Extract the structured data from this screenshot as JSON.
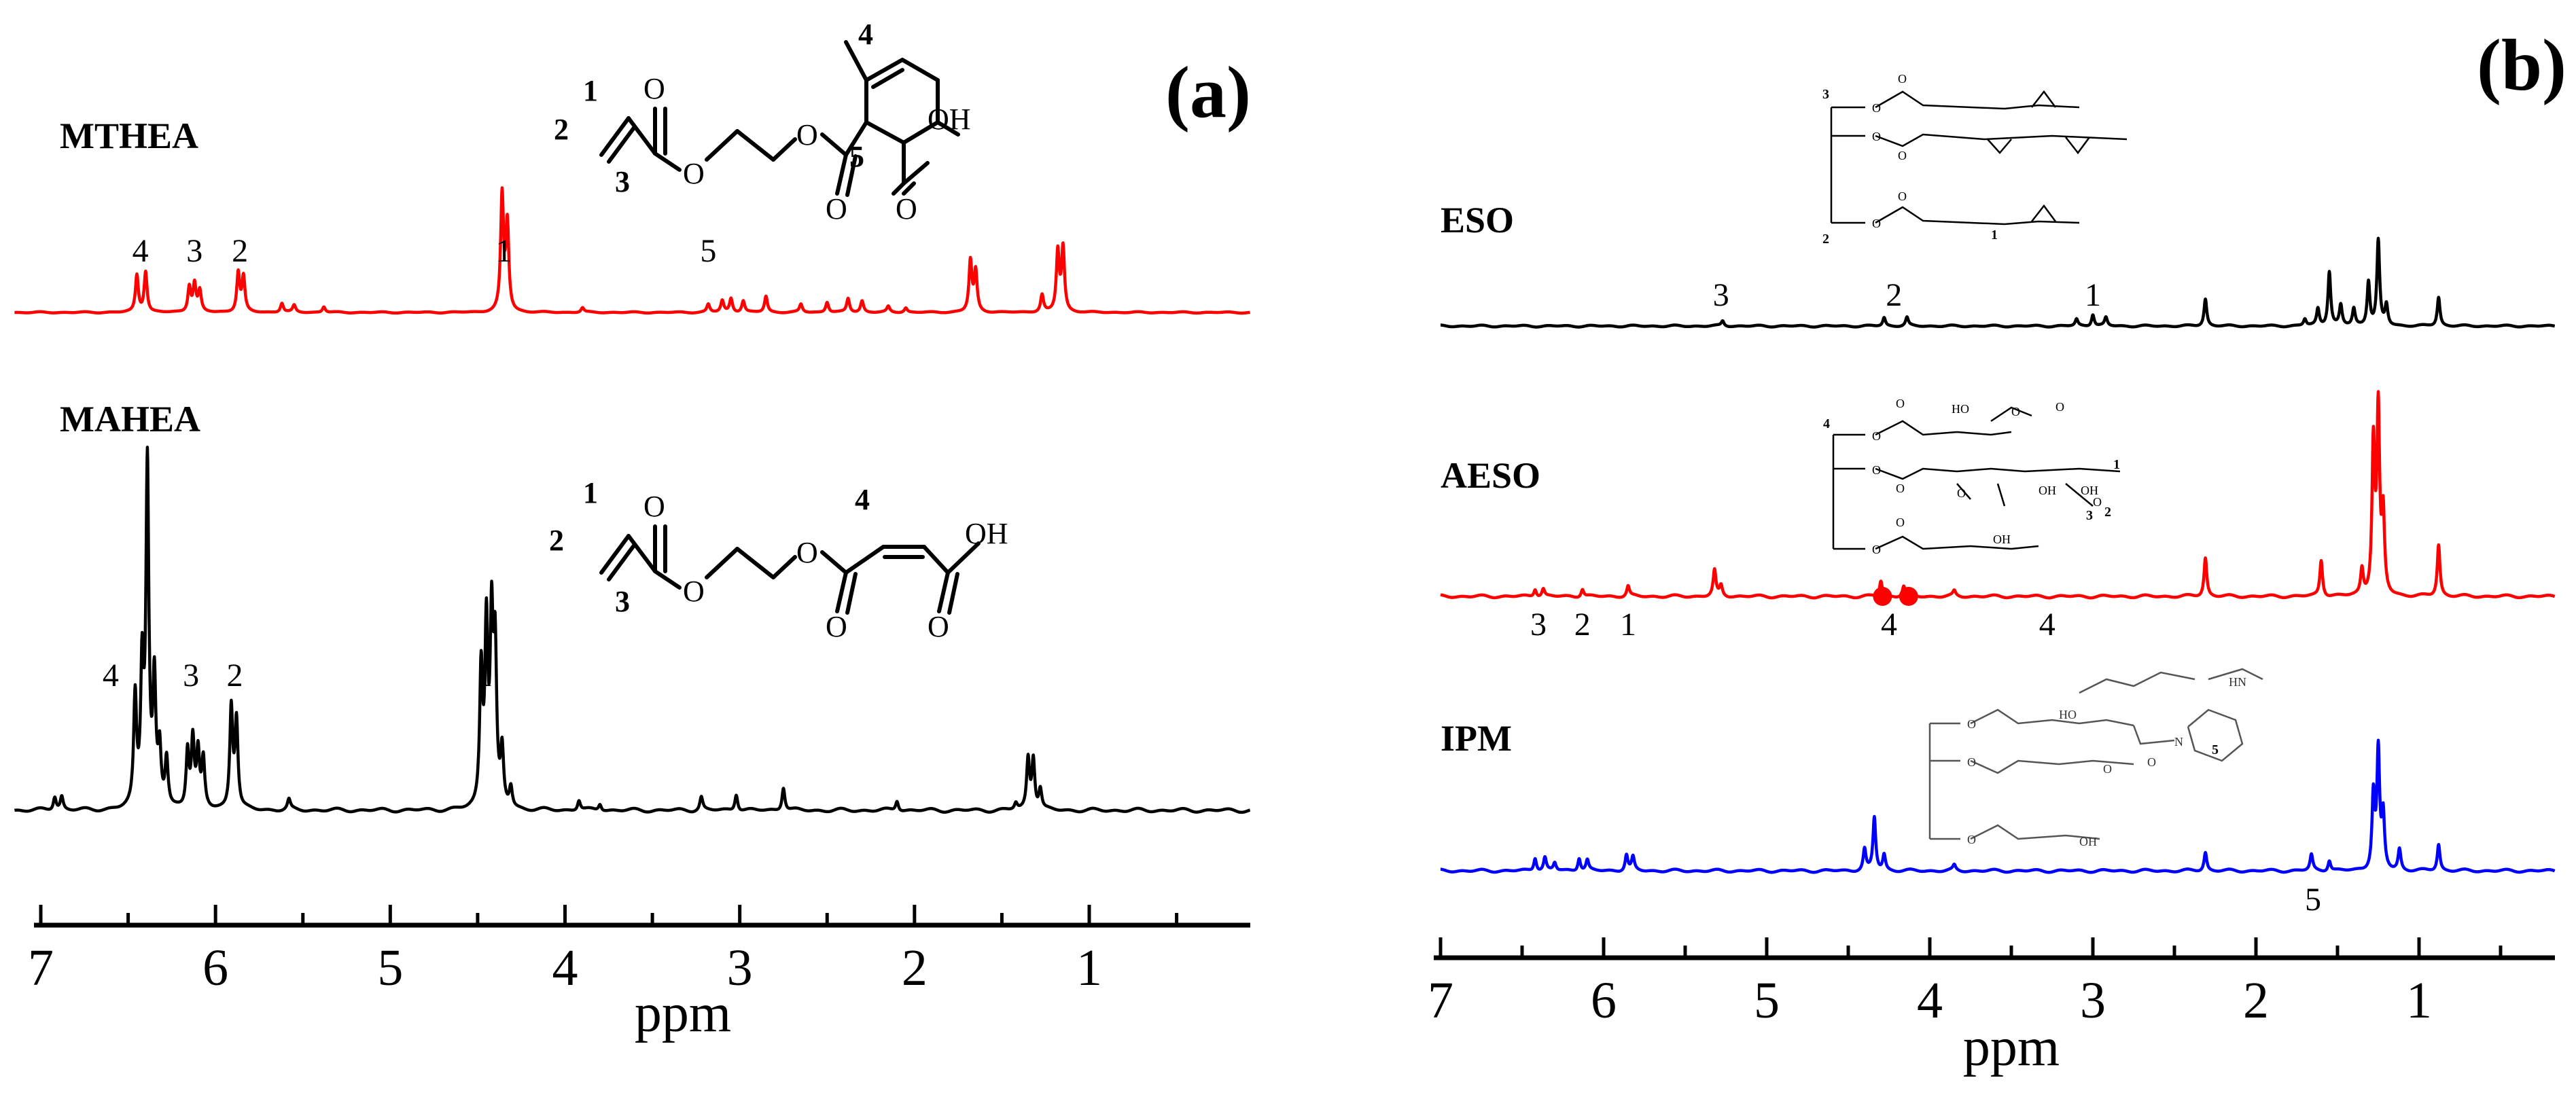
{
  "chart_data": [
    {
      "type": "line",
      "panel": "(a)",
      "xlabel": "ppm",
      "xlim": [
        7.15,
        0.0
      ],
      "x_ticks": [
        "7",
        "6",
        "5",
        "4",
        "3",
        "2",
        "1"
      ],
      "x_tick_values": [
        7,
        6,
        5,
        4,
        3,
        2,
        1
      ],
      "x_axis_reversed": true,
      "legend": "none",
      "series": [
        {
          "name": "MTHEA",
          "color": "#ff0000",
          "peaks": [
            {
              "ppm": 6.45,
              "h": 0.32
            },
            {
              "ppm": 6.4,
              "h": 0.35
            },
            {
              "ppm": 6.15,
              "h": 0.22
            },
            {
              "ppm": 6.12,
              "h": 0.24
            },
            {
              "ppm": 6.09,
              "h": 0.18
            },
            {
              "ppm": 5.87,
              "h": 0.34
            },
            {
              "ppm": 5.84,
              "h": 0.3
            },
            {
              "ppm": 5.62,
              "h": 0.08
            },
            {
              "ppm": 5.55,
              "h": 0.06
            },
            {
              "ppm": 5.38,
              "h": 0.05
            },
            {
              "ppm": 4.36,
              "h": 1.0
            },
            {
              "ppm": 4.33,
              "h": 0.75
            },
            {
              "ppm": 3.9,
              "h": 0.04
            },
            {
              "ppm": 3.18,
              "h": 0.07
            },
            {
              "ppm": 3.1,
              "h": 0.1
            },
            {
              "ppm": 3.05,
              "h": 0.12
            },
            {
              "ppm": 2.98,
              "h": 0.1
            },
            {
              "ppm": 2.85,
              "h": 0.14
            },
            {
              "ppm": 2.65,
              "h": 0.07
            },
            {
              "ppm": 2.5,
              "h": 0.09
            },
            {
              "ppm": 2.38,
              "h": 0.12
            },
            {
              "ppm": 2.3,
              "h": 0.1
            },
            {
              "ppm": 2.15,
              "h": 0.05
            },
            {
              "ppm": 2.05,
              "h": 0.04
            },
            {
              "ppm": 1.68,
              "h": 0.44
            },
            {
              "ppm": 1.65,
              "h": 0.35
            },
            {
              "ppm": 1.27,
              "h": 0.15
            },
            {
              "ppm": 1.18,
              "h": 0.52
            },
            {
              "ppm": 1.15,
              "h": 0.55
            }
          ],
          "peak_labels": [
            {
              "text": "4",
              "ppm": 6.43
            },
            {
              "text": "3",
              "ppm": 6.12
            },
            {
              "text": "2",
              "ppm": 5.86
            },
            {
              "text": "1",
              "ppm": 4.35
            },
            {
              "text": "5",
              "ppm": 3.18
            }
          ],
          "structure_labels": {
            "acid": "OH",
            "nums": [
              "1",
              "2",
              "3",
              "4",
              "5"
            ]
          }
        },
        {
          "name": "MAHEA",
          "color": "#000000",
          "peaks": [
            {
              "ppm": 6.92,
              "h": 0.04
            },
            {
              "ppm": 6.88,
              "h": 0.04
            },
            {
              "ppm": 6.46,
              "h": 0.32
            },
            {
              "ppm": 6.42,
              "h": 0.4
            },
            {
              "ppm": 6.39,
              "h": 1.0
            },
            {
              "ppm": 6.35,
              "h": 0.36
            },
            {
              "ppm": 6.32,
              "h": 0.16
            },
            {
              "ppm": 6.28,
              "h": 0.14
            },
            {
              "ppm": 6.16,
              "h": 0.17
            },
            {
              "ppm": 6.13,
              "h": 0.2
            },
            {
              "ppm": 6.1,
              "h": 0.16
            },
            {
              "ppm": 6.07,
              "h": 0.14
            },
            {
              "ppm": 5.91,
              "h": 0.3
            },
            {
              "ppm": 5.88,
              "h": 0.26
            },
            {
              "ppm": 5.58,
              "h": 0.03
            },
            {
              "ppm": 4.48,
              "h": 0.4
            },
            {
              "ppm": 4.45,
              "h": 0.52
            },
            {
              "ppm": 4.42,
              "h": 0.52
            },
            {
              "ppm": 4.4,
              "h": 0.44
            },
            {
              "ppm": 4.36,
              "h": 0.16
            },
            {
              "ppm": 4.31,
              "h": 0.06
            },
            {
              "ppm": 3.92,
              "h": 0.03
            },
            {
              "ppm": 3.8,
              "h": 0.02
            },
            {
              "ppm": 3.22,
              "h": 0.04
            },
            {
              "ppm": 3.02,
              "h": 0.05
            },
            {
              "ppm": 2.75,
              "h": 0.07
            },
            {
              "ppm": 2.1,
              "h": 0.03
            },
            {
              "ppm": 1.42,
              "h": 0.02
            },
            {
              "ppm": 1.35,
              "h": 0.15
            },
            {
              "ppm": 1.32,
              "h": 0.15
            },
            {
              "ppm": 1.28,
              "h": 0.06
            }
          ],
          "peak_labels": [
            {
              "text": "4",
              "ppm": 6.6
            },
            {
              "text": "3",
              "ppm": 6.14
            },
            {
              "text": "2",
              "ppm": 5.89
            },
            {
              "text": "1",
              "ppm": 4.46
            }
          ],
          "structure_labels": {
            "acid": "OH",
            "nums": [
              "1",
              "2",
              "3",
              "4"
            ]
          }
        }
      ]
    },
    {
      "type": "line",
      "panel": "(b)",
      "xlabel": "ppm",
      "xlim": [
        7.0,
        0.0
      ],
      "x_ticks": [
        "7",
        "6",
        "5",
        "4",
        "3",
        "2",
        "1"
      ],
      "x_tick_values": [
        7,
        6,
        5,
        4,
        3,
        2,
        1
      ],
      "x_axis_reversed": true,
      "legend": "none",
      "series": [
        {
          "name": "ESO",
          "color": "#000000",
          "peaks": [
            {
              "ppm": 5.27,
              "h": 0.03
            },
            {
              "ppm": 4.28,
              "h": 0.05
            },
            {
              "ppm": 4.14,
              "h": 0.05
            },
            {
              "ppm": 3.1,
              "h": 0.04
            },
            {
              "ppm": 3.0,
              "h": 0.07
            },
            {
              "ppm": 2.92,
              "h": 0.05
            },
            {
              "ppm": 2.31,
              "h": 0.16
            },
            {
              "ppm": 1.7,
              "h": 0.04
            },
            {
              "ppm": 1.62,
              "h": 0.1
            },
            {
              "ppm": 1.55,
              "h": 0.32
            },
            {
              "ppm": 1.48,
              "h": 0.12
            },
            {
              "ppm": 1.4,
              "h": 0.1
            },
            {
              "ppm": 1.31,
              "h": 0.26
            },
            {
              "ppm": 1.25,
              "h": 0.5
            },
            {
              "ppm": 1.2,
              "h": 0.12
            },
            {
              "ppm": 0.88,
              "h": 0.17
            }
          ],
          "peak_labels": [
            {
              "text": "3",
              "ppm": 5.28
            },
            {
              "text": "2",
              "ppm": 4.22
            },
            {
              "text": "1",
              "ppm": 3.0
            }
          ],
          "structure_labels": {
            "nums": [
              "1",
              "2",
              "3"
            ]
          }
        },
        {
          "name": "AESO",
          "color": "#ff0000",
          "peaks": [
            {
              "ppm": 6.42,
              "h": 0.03
            },
            {
              "ppm": 6.37,
              "h": 0.03
            },
            {
              "ppm": 6.13,
              "h": 0.03
            },
            {
              "ppm": 5.85,
              "h": 0.04
            },
            {
              "ppm": 5.32,
              "h": 0.1
            },
            {
              "ppm": 5.28,
              "h": 0.04
            },
            {
              "ppm": 4.3,
              "h": 0.06
            },
            {
              "ppm": 4.16,
              "h": 0.04
            },
            {
              "ppm": 3.85,
              "h": 0.02
            },
            {
              "ppm": 2.31,
              "h": 0.15
            },
            {
              "ppm": 1.6,
              "h": 0.14
            },
            {
              "ppm": 1.35,
              "h": 0.1
            },
            {
              "ppm": 1.28,
              "h": 0.58
            },
            {
              "ppm": 1.25,
              "h": 0.7
            },
            {
              "ppm": 1.22,
              "h": 0.3
            },
            {
              "ppm": 0.88,
              "h": 0.2
            }
          ],
          "peak_labels": [
            {
              "text": "3",
              "ppm": 6.4
            },
            {
              "text": "2",
              "ppm": 6.13
            },
            {
              "text": "1",
              "ppm": 5.85
            },
            {
              "text": "4",
              "ppm": 4.25
            },
            {
              "text": "4",
              "ppm": 3.28
            }
          ],
          "markers": [
            {
              "ppm": 4.29,
              "shape": "dot"
            },
            {
              "ppm": 4.13,
              "shape": "dot"
            }
          ],
          "structure_labels": {
            "hydroxyl": "HO",
            "nums": [
              "1",
              "2",
              "3",
              "4"
            ]
          }
        },
        {
          "name": "IPM",
          "color": "#0000ff",
          "peaks": [
            {
              "ppm": 6.42,
              "h": 0.05
            },
            {
              "ppm": 6.36,
              "h": 0.05
            },
            {
              "ppm": 6.3,
              "h": 0.03
            },
            {
              "ppm": 6.15,
              "h": 0.05
            },
            {
              "ppm": 6.1,
              "h": 0.04
            },
            {
              "ppm": 5.86,
              "h": 0.06
            },
            {
              "ppm": 5.82,
              "h": 0.05
            },
            {
              "ppm": 4.4,
              "h": 0.08
            },
            {
              "ppm": 4.34,
              "h": 0.2
            },
            {
              "ppm": 4.28,
              "h": 0.06
            },
            {
              "ppm": 3.85,
              "h": 0.02
            },
            {
              "ppm": 2.31,
              "h": 0.07
            },
            {
              "ppm": 1.66,
              "h": 0.06
            },
            {
              "ppm": 1.55,
              "h": 0.04
            },
            {
              "ppm": 1.28,
              "h": 0.28
            },
            {
              "ppm": 1.25,
              "h": 0.44
            },
            {
              "ppm": 1.22,
              "h": 0.2
            },
            {
              "ppm": 1.12,
              "h": 0.08
            },
            {
              "ppm": 0.88,
              "h": 0.1
            }
          ],
          "peak_labels": [
            {
              "text": "5",
              "ppm": 1.65
            }
          ],
          "structure_labels": {
            "amine": "HN",
            "amide": "N",
            "nums": [
              "5"
            ]
          }
        }
      ]
    }
  ]
}
